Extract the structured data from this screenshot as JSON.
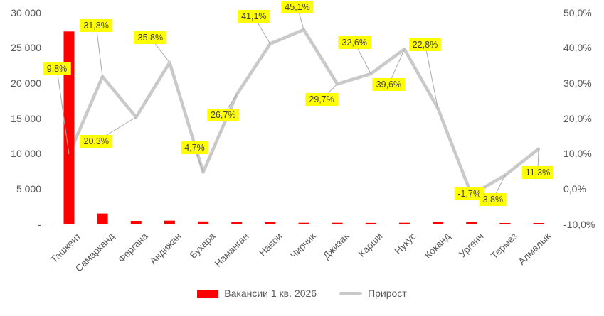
{
  "chart_data": {
    "type": "bar",
    "subtype": "combo-bar-line",
    "title": "",
    "categories": [
      "Ташкент",
      "Самарканд",
      "Фергана",
      "Андижан",
      "Бухара",
      "Наманган",
      "Навои",
      "Чирчик",
      "Джизак",
      "Карши",
      "Нукус",
      "Коканд",
      "Ургенч",
      "Термез",
      "Алмалык"
    ],
    "series": [
      {
        "name": "Вакансии 1 кв. 2026",
        "type": "bar",
        "axis": "left",
        "color": "#FF0000",
        "values": [
          27300,
          1500,
          450,
          480,
          370,
          280,
          270,
          180,
          180,
          160,
          180,
          250,
          250,
          120,
          130
        ]
      },
      {
        "name": "Прирост",
        "type": "line",
        "axis": "right",
        "color": "#C9C9C9",
        "values": [
          9.8,
          31.8,
          20.3,
          35.8,
          4.7,
          26.7,
          41.1,
          45.1,
          29.7,
          32.6,
          39.6,
          22.8,
          -1.7,
          3.8,
          11.3
        ],
        "data_labels": [
          "9,8%",
          "31,8%",
          "20,3%",
          "35,8%",
          "4,7%",
          "26,7%",
          "41,1%",
          "45,1%",
          "29,7%",
          "32,6%",
          "39,6%",
          "22,8%",
          "-1,7%",
          "3,8%",
          "11,3%"
        ],
        "label_bg_color": "#FFFF00",
        "label_offsets": [
          [
            -17,
            -120
          ],
          [
            -9,
            -72
          ],
          [
            -56,
            34
          ],
          [
            -27,
            -35
          ],
          [
            -12,
            -34
          ],
          [
            -19,
            29
          ],
          [
            -23,
            -39
          ],
          [
            -9,
            -32
          ],
          [
            -22,
            22
          ],
          [
            -23,
            -44
          ],
          [
            -22,
            50
          ],
          [
            -18,
            -90
          ],
          [
            -3,
            -1
          ],
          [
            -17,
            34
          ],
          [
            -1,
            33
          ]
        ]
      }
    ],
    "left_axis": {
      "min": 0,
      "max": 30000,
      "tick_labels": [
        "30 000",
        "25 000",
        "20 000",
        "15 000",
        "10 000",
        "5 000",
        "-"
      ]
    },
    "right_axis": {
      "min": -10,
      "max": 50,
      "tick_labels": [
        "50,0%",
        "40,0%",
        "30,0%",
        "20,0%",
        "10,0%",
        "0,0%",
        "-10,0%"
      ]
    },
    "grid": false,
    "legend_position": "bottom",
    "colors": {
      "bar": "#FF0000",
      "line": "#C9C9C9",
      "leader_line": "#A9A9A9",
      "axis_line": "#D9D9D9",
      "axis_text": "#595959",
      "label_bg": "#FFFF00",
      "label_text": "#404040"
    }
  },
  "legend": {
    "items": [
      {
        "label": "Вакансии 1 кв. 2026",
        "swatch": "bar",
        "color": "#FF0000"
      },
      {
        "label": "Прирост",
        "swatch": "line",
        "color": "#C9C9C9"
      }
    ]
  }
}
